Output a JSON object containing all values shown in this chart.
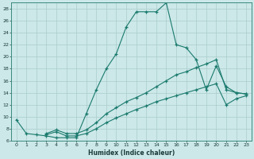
{
  "xlabel": "Humidex (Indice chaleur)",
  "background_color": "#cce8e8",
  "line_color": "#1a7a6e",
  "grid_color": "#aacccc",
  "xlim": [
    -0.5,
    23.5
  ],
  "ylim": [
    6,
    29
  ],
  "xticks": [
    0,
    1,
    2,
    3,
    4,
    5,
    6,
    7,
    8,
    9,
    10,
    11,
    12,
    13,
    14,
    15,
    16,
    17,
    18,
    19,
    20,
    21,
    22,
    23
  ],
  "yticks": [
    6,
    8,
    10,
    12,
    14,
    16,
    18,
    20,
    22,
    24,
    26,
    28
  ],
  "series1_x": [
    0,
    1,
    2,
    3,
    4,
    5,
    6,
    7,
    8,
    9,
    10,
    11,
    12,
    13,
    14,
    15,
    16,
    17,
    18,
    19,
    20,
    21,
    22,
    23
  ],
  "series1_y": [
    9.5,
    7.2,
    7.0,
    6.8,
    6.5,
    6.5,
    6.5,
    10.5,
    14.5,
    18.0,
    20.5,
    25.0,
    27.5,
    27.5,
    27.5,
    29.0,
    22.0,
    21.5,
    19.5,
    14.5,
    18.5,
    15.0,
    14.0,
    13.8
  ],
  "series2_x": [
    3,
    4,
    5,
    6,
    7,
    8,
    9,
    10,
    11,
    12,
    13,
    14,
    15,
    16,
    17,
    18,
    19,
    20,
    21,
    22,
    23
  ],
  "series2_y": [
    7.2,
    7.8,
    7.2,
    7.2,
    7.8,
    9.0,
    10.5,
    11.5,
    12.5,
    13.2,
    14.0,
    15.0,
    16.0,
    17.0,
    17.5,
    18.2,
    18.8,
    19.5,
    14.5,
    14.0,
    13.8
  ],
  "series3_x": [
    3,
    4,
    5,
    6,
    7,
    8,
    9,
    10,
    11,
    12,
    13,
    14,
    15,
    16,
    17,
    18,
    19,
    20,
    21,
    22,
    23
  ],
  "series3_y": [
    7.0,
    7.5,
    6.8,
    6.8,
    7.2,
    8.0,
    9.0,
    9.8,
    10.5,
    11.2,
    11.8,
    12.5,
    13.0,
    13.5,
    14.0,
    14.5,
    15.0,
    15.5,
    12.0,
    13.0,
    13.5
  ]
}
